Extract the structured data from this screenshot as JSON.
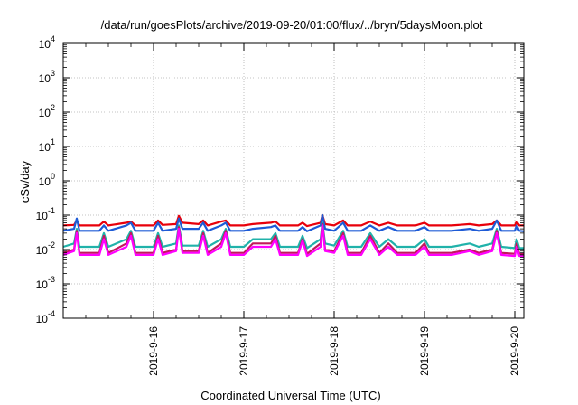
{
  "chart_data": {
    "type": "line",
    "title": "/data/run/goesPlots/archive/2019-09-20/01:00/flux/../bryn/5daysMoon.plot",
    "xlabel": "Coordinated Universal Time (UTC)",
    "ylabel": "cSv/day",
    "y_scale": "log",
    "ylim": [
      0.0001,
      10000
    ],
    "xlim": [
      15.0,
      20.1
    ],
    "grid": true,
    "y_ticks": [
      {
        "value": 0.0001,
        "base": "10",
        "exp": "-4"
      },
      {
        "value": 0.001,
        "base": "10",
        "exp": "-3"
      },
      {
        "value": 0.01,
        "base": "10",
        "exp": "-2"
      },
      {
        "value": 0.1,
        "base": "10",
        "exp": "-1"
      },
      {
        "value": 1,
        "base": "10",
        "exp": "0"
      },
      {
        "value": 10,
        "base": "10",
        "exp": "1"
      },
      {
        "value": 100,
        "base": "10",
        "exp": "2"
      },
      {
        "value": 1000,
        "base": "10",
        "exp": "3"
      },
      {
        "value": 10000,
        "base": "10",
        "exp": "4"
      }
    ],
    "x_ticks": [
      {
        "value": 16,
        "label": "2019-9-16"
      },
      {
        "value": 17,
        "label": "2019-9-17"
      },
      {
        "value": 18,
        "label": "2019-9-18"
      },
      {
        "value": 19,
        "label": "2019-9-19"
      },
      {
        "value": 20,
        "label": "2019-9-20"
      }
    ],
    "series": [
      {
        "color": "#e8000b",
        "baseline": 0.048,
        "points": [
          [
            15.0,
            0.05
          ],
          [
            15.12,
            0.052
          ],
          [
            15.15,
            0.07
          ],
          [
            15.18,
            0.05
          ],
          [
            15.4,
            0.05
          ],
          [
            15.45,
            0.065
          ],
          [
            15.5,
            0.05
          ],
          [
            15.7,
            0.06
          ],
          [
            15.75,
            0.065
          ],
          [
            15.8,
            0.05
          ],
          [
            16.0,
            0.05
          ],
          [
            16.05,
            0.07
          ],
          [
            16.1,
            0.052
          ],
          [
            16.25,
            0.055
          ],
          [
            16.28,
            0.095
          ],
          [
            16.32,
            0.06
          ],
          [
            16.5,
            0.055
          ],
          [
            16.55,
            0.07
          ],
          [
            16.6,
            0.05
          ],
          [
            16.75,
            0.065
          ],
          [
            16.8,
            0.07
          ],
          [
            16.85,
            0.05
          ],
          [
            17.0,
            0.05
          ],
          [
            17.1,
            0.055
          ],
          [
            17.3,
            0.06
          ],
          [
            17.35,
            0.065
          ],
          [
            17.4,
            0.05
          ],
          [
            17.6,
            0.05
          ],
          [
            17.65,
            0.06
          ],
          [
            17.7,
            0.048
          ],
          [
            17.85,
            0.06
          ],
          [
            17.87,
            0.1
          ],
          [
            17.9,
            0.055
          ],
          [
            18.0,
            0.05
          ],
          [
            18.1,
            0.07
          ],
          [
            18.15,
            0.05
          ],
          [
            18.3,
            0.05
          ],
          [
            18.4,
            0.065
          ],
          [
            18.5,
            0.05
          ],
          [
            18.6,
            0.06
          ],
          [
            18.7,
            0.05
          ],
          [
            18.9,
            0.05
          ],
          [
            19.0,
            0.06
          ],
          [
            19.05,
            0.05
          ],
          [
            19.3,
            0.05
          ],
          [
            19.5,
            0.055
          ],
          [
            19.6,
            0.05
          ],
          [
            19.75,
            0.055
          ],
          [
            19.8,
            0.07
          ],
          [
            19.85,
            0.05
          ],
          [
            20.0,
            0.05
          ],
          [
            20.02,
            0.065
          ],
          [
            20.05,
            0.05
          ],
          [
            20.1,
            0.05
          ]
        ]
      },
      {
        "color": "#1e5bd6",
        "baseline": 0.034,
        "points": [
          [
            15.0,
            0.035
          ],
          [
            15.12,
            0.04
          ],
          [
            15.15,
            0.08
          ],
          [
            15.18,
            0.035
          ],
          [
            15.4,
            0.035
          ],
          [
            15.45,
            0.05
          ],
          [
            15.5,
            0.035
          ],
          [
            15.7,
            0.05
          ],
          [
            15.75,
            0.06
          ],
          [
            15.8,
            0.035
          ],
          [
            16.0,
            0.035
          ],
          [
            16.05,
            0.06
          ],
          [
            16.1,
            0.035
          ],
          [
            16.25,
            0.04
          ],
          [
            16.28,
            0.08
          ],
          [
            16.32,
            0.04
          ],
          [
            16.5,
            0.04
          ],
          [
            16.55,
            0.06
          ],
          [
            16.6,
            0.035
          ],
          [
            16.75,
            0.05
          ],
          [
            16.8,
            0.06
          ],
          [
            16.85,
            0.035
          ],
          [
            17.0,
            0.035
          ],
          [
            17.1,
            0.04
          ],
          [
            17.3,
            0.045
          ],
          [
            17.35,
            0.05
          ],
          [
            17.4,
            0.035
          ],
          [
            17.6,
            0.035
          ],
          [
            17.65,
            0.045
          ],
          [
            17.7,
            0.034
          ],
          [
            17.85,
            0.05
          ],
          [
            17.87,
            0.1
          ],
          [
            17.9,
            0.04
          ],
          [
            18.0,
            0.035
          ],
          [
            18.1,
            0.06
          ],
          [
            18.15,
            0.035
          ],
          [
            18.3,
            0.035
          ],
          [
            18.4,
            0.05
          ],
          [
            18.5,
            0.035
          ],
          [
            18.6,
            0.045
          ],
          [
            18.7,
            0.035
          ],
          [
            18.9,
            0.035
          ],
          [
            19.0,
            0.045
          ],
          [
            19.05,
            0.035
          ],
          [
            19.3,
            0.035
          ],
          [
            19.5,
            0.04
          ],
          [
            19.6,
            0.035
          ],
          [
            19.75,
            0.04
          ],
          [
            19.8,
            0.07
          ],
          [
            19.85,
            0.035
          ],
          [
            20.0,
            0.035
          ],
          [
            20.02,
            0.05
          ],
          [
            20.05,
            0.035
          ],
          [
            20.1,
            0.034
          ]
        ]
      },
      {
        "color": "#20b2aa",
        "baseline": 0.011,
        "points": [
          [
            15.0,
            0.012
          ],
          [
            15.12,
            0.015
          ],
          [
            15.15,
            0.04
          ],
          [
            15.18,
            0.012
          ],
          [
            15.4,
            0.012
          ],
          [
            15.45,
            0.03
          ],
          [
            15.5,
            0.012
          ],
          [
            15.7,
            0.02
          ],
          [
            15.75,
            0.035
          ],
          [
            15.8,
            0.012
          ],
          [
            16.0,
            0.012
          ],
          [
            16.05,
            0.03
          ],
          [
            16.1,
            0.012
          ],
          [
            16.25,
            0.015
          ],
          [
            16.28,
            0.05
          ],
          [
            16.32,
            0.013
          ],
          [
            16.5,
            0.013
          ],
          [
            16.55,
            0.035
          ],
          [
            16.6,
            0.012
          ],
          [
            16.75,
            0.02
          ],
          [
            16.8,
            0.04
          ],
          [
            16.85,
            0.012
          ],
          [
            17.0,
            0.012
          ],
          [
            17.1,
            0.02
          ],
          [
            17.3,
            0.02
          ],
          [
            17.35,
            0.03
          ],
          [
            17.4,
            0.012
          ],
          [
            17.6,
            0.012
          ],
          [
            17.65,
            0.025
          ],
          [
            17.7,
            0.011
          ],
          [
            17.85,
            0.02
          ],
          [
            17.87,
            0.06
          ],
          [
            17.9,
            0.015
          ],
          [
            18.0,
            0.013
          ],
          [
            18.1,
            0.035
          ],
          [
            18.15,
            0.012
          ],
          [
            18.3,
            0.012
          ],
          [
            18.4,
            0.03
          ],
          [
            18.5,
            0.012
          ],
          [
            18.6,
            0.02
          ],
          [
            18.7,
            0.012
          ],
          [
            18.9,
            0.012
          ],
          [
            19.0,
            0.02
          ],
          [
            19.05,
            0.012
          ],
          [
            19.3,
            0.012
          ],
          [
            19.5,
            0.015
          ],
          [
            19.6,
            0.012
          ],
          [
            19.75,
            0.015
          ],
          [
            19.8,
            0.04
          ],
          [
            19.85,
            0.012
          ],
          [
            20.0,
            0.011
          ],
          [
            20.02,
            0.02
          ],
          [
            20.05,
            0.011
          ],
          [
            20.1,
            0.011
          ]
        ]
      },
      {
        "color": "#c2185b",
        "baseline": 0.0075,
        "points": [
          [
            15.0,
            0.008
          ],
          [
            15.12,
            0.01
          ],
          [
            15.15,
            0.035
          ],
          [
            15.18,
            0.008
          ],
          [
            15.4,
            0.008
          ],
          [
            15.45,
            0.025
          ],
          [
            15.5,
            0.008
          ],
          [
            15.7,
            0.015
          ],
          [
            15.75,
            0.03
          ],
          [
            15.8,
            0.008
          ],
          [
            16.0,
            0.008
          ],
          [
            16.05,
            0.025
          ],
          [
            16.1,
            0.008
          ],
          [
            16.25,
            0.01
          ],
          [
            16.28,
            0.045
          ],
          [
            16.32,
            0.009
          ],
          [
            16.5,
            0.009
          ],
          [
            16.55,
            0.03
          ],
          [
            16.6,
            0.008
          ],
          [
            16.75,
            0.015
          ],
          [
            16.8,
            0.035
          ],
          [
            16.85,
            0.008
          ],
          [
            17.0,
            0.008
          ],
          [
            17.1,
            0.015
          ],
          [
            17.3,
            0.015
          ],
          [
            17.35,
            0.025
          ],
          [
            17.4,
            0.008
          ],
          [
            17.6,
            0.008
          ],
          [
            17.65,
            0.02
          ],
          [
            17.7,
            0.0075
          ],
          [
            17.85,
            0.015
          ],
          [
            17.87,
            0.055
          ],
          [
            17.9,
            0.01
          ],
          [
            18.0,
            0.009
          ],
          [
            18.1,
            0.03
          ],
          [
            18.15,
            0.008
          ],
          [
            18.3,
            0.008
          ],
          [
            18.4,
            0.025
          ],
          [
            18.5,
            0.008
          ],
          [
            18.6,
            0.015
          ],
          [
            18.7,
            0.008
          ],
          [
            18.9,
            0.008
          ],
          [
            19.0,
            0.015
          ],
          [
            19.05,
            0.008
          ],
          [
            19.3,
            0.008
          ],
          [
            19.5,
            0.01
          ],
          [
            19.6,
            0.008
          ],
          [
            19.75,
            0.01
          ],
          [
            19.8,
            0.035
          ],
          [
            19.85,
            0.008
          ],
          [
            20.0,
            0.0075
          ],
          [
            20.02,
            0.015
          ],
          [
            20.05,
            0.0075
          ],
          [
            20.1,
            0.0075
          ]
        ]
      },
      {
        "color": "#ff00ff",
        "baseline": 0.0065,
        "points": [
          [
            15.0,
            0.007
          ],
          [
            15.12,
            0.009
          ],
          [
            15.15,
            0.03
          ],
          [
            15.18,
            0.007
          ],
          [
            15.4,
            0.007
          ],
          [
            15.45,
            0.02
          ],
          [
            15.5,
            0.007
          ],
          [
            15.7,
            0.012
          ],
          [
            15.75,
            0.025
          ],
          [
            15.8,
            0.007
          ],
          [
            16.0,
            0.007
          ],
          [
            16.05,
            0.02
          ],
          [
            16.1,
            0.007
          ],
          [
            16.25,
            0.009
          ],
          [
            16.28,
            0.04
          ],
          [
            16.32,
            0.008
          ],
          [
            16.5,
            0.008
          ],
          [
            16.55,
            0.025
          ],
          [
            16.6,
            0.007
          ],
          [
            16.75,
            0.012
          ],
          [
            16.8,
            0.03
          ],
          [
            16.85,
            0.007
          ],
          [
            17.0,
            0.007
          ],
          [
            17.1,
            0.012
          ],
          [
            17.3,
            0.012
          ],
          [
            17.35,
            0.02
          ],
          [
            17.4,
            0.007
          ],
          [
            17.6,
            0.007
          ],
          [
            17.65,
            0.018
          ],
          [
            17.7,
            0.0065
          ],
          [
            17.85,
            0.012
          ],
          [
            17.87,
            0.05
          ],
          [
            17.9,
            0.009
          ],
          [
            18.0,
            0.008
          ],
          [
            18.1,
            0.025
          ],
          [
            18.15,
            0.007
          ],
          [
            18.3,
            0.007
          ],
          [
            18.4,
            0.02
          ],
          [
            18.5,
            0.007
          ],
          [
            18.6,
            0.012
          ],
          [
            18.7,
            0.007
          ],
          [
            18.9,
            0.007
          ],
          [
            19.0,
            0.012
          ],
          [
            19.05,
            0.007
          ],
          [
            19.3,
            0.007
          ],
          [
            19.5,
            0.009
          ],
          [
            19.6,
            0.007
          ],
          [
            19.75,
            0.009
          ],
          [
            19.8,
            0.03
          ],
          [
            19.85,
            0.007
          ],
          [
            20.0,
            0.0065
          ],
          [
            20.02,
            0.012
          ],
          [
            20.05,
            0.0065
          ],
          [
            20.1,
            0.0065
          ]
        ]
      }
    ]
  }
}
